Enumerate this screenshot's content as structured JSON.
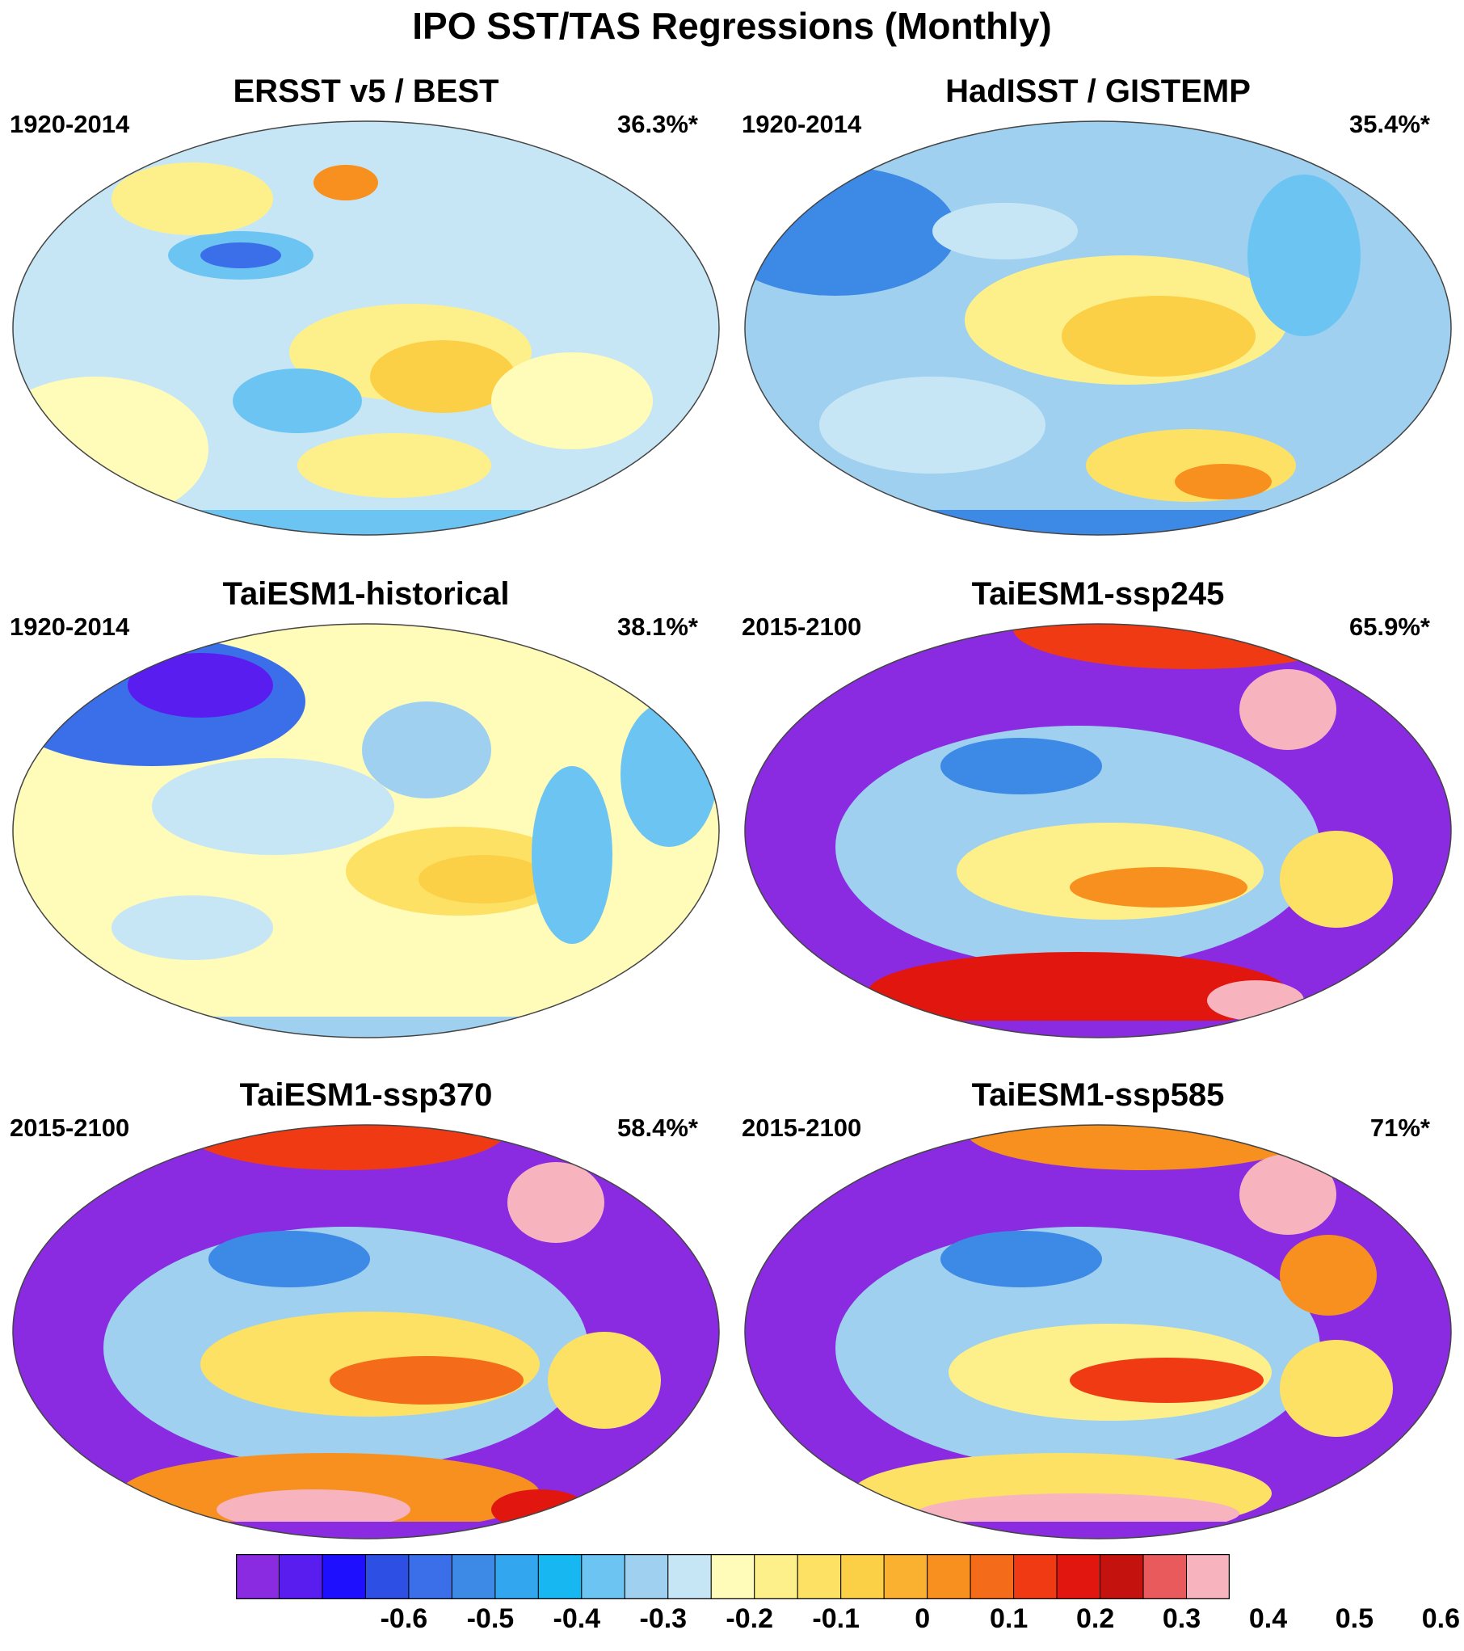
{
  "figure": {
    "title": "IPO SST/TAS Regressions (Monthly)"
  },
  "panels": [
    {
      "title": "ERSST v5 / BEST",
      "period": "1920-2014",
      "percent": "36.3%*"
    },
    {
      "title": "HadISST / GISTEMP",
      "period": "1920-2014",
      "percent": "35.4%*"
    },
    {
      "title": "TaiESM1-historical",
      "period": "1920-2014",
      "percent": "38.1%*"
    },
    {
      "title": "TaiESM1-ssp245",
      "period": "2015-2100",
      "percent": "65.9%*"
    },
    {
      "title": "TaiESM1-ssp370",
      "period": "2015-2100",
      "percent": "58.4%*"
    },
    {
      "title": "TaiESM1-ssp585",
      "period": "2015-2100",
      "percent": "71%*"
    }
  ],
  "colorbar": {
    "colors": [
      "#8a2be2",
      "#5a1df0",
      "#1e10ff",
      "#2e4fe4",
      "#3b6fe9",
      "#3d8ae6",
      "#33a6f0",
      "#17b8f2",
      "#6cc4f2",
      "#9fd0ef",
      "#c7e6f5",
      "#fffbb8",
      "#fdf08a",
      "#fde165",
      "#fbcf46",
      "#fab12f",
      "#f7901f",
      "#f46c19",
      "#f03a13",
      "#e0160f",
      "#c4120e",
      "#e85a5c",
      "#f7b4be"
    ],
    "labels": [
      "-0.6",
      "-0.5",
      "-0.4",
      "-0.3",
      "-0.2",
      "-0.1",
      "0",
      "0.1",
      "0.2",
      "0.3",
      "0.4",
      "0.5",
      "0.6"
    ]
  }
}
